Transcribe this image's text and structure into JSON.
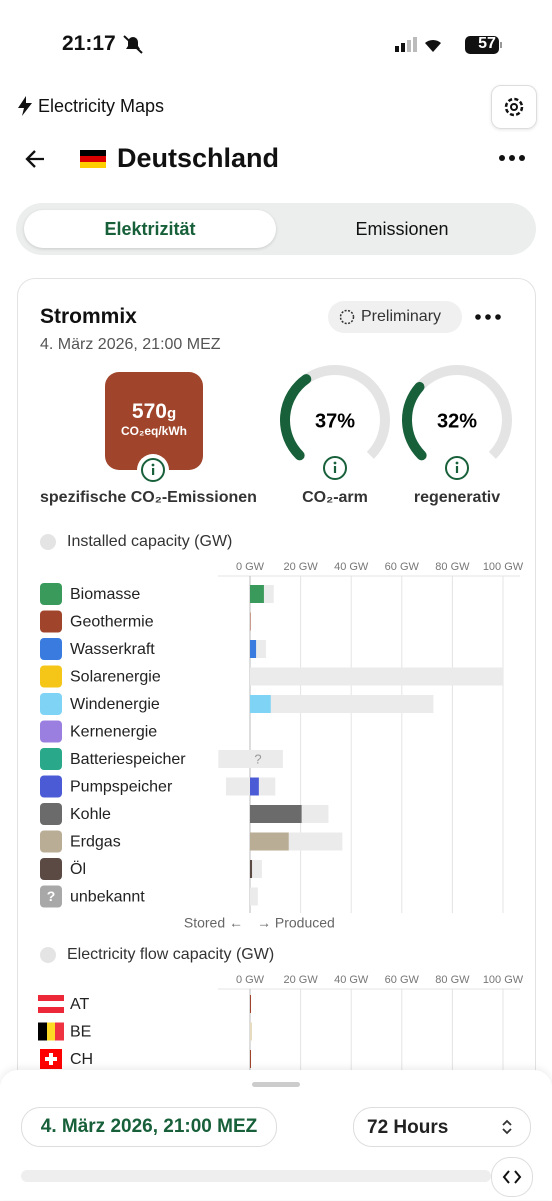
{
  "status_bar": {
    "time": "21:17",
    "battery": "57"
  },
  "header": {
    "app_name": "Electricity Maps",
    "zone": "Deutschland"
  },
  "tabs": {
    "active": "Elektrizität",
    "inactive": "Emissionen"
  },
  "card": {
    "title": "Strommix",
    "date": "4. März 2026, 21:00 MEZ",
    "badge": "Preliminary",
    "intensity": {
      "value": "570",
      "unit": "g",
      "unit_sub": "CO₂eq/kWh",
      "label": "spezifische CO₂-Emissionen"
    },
    "gauges": [
      {
        "label": "CO₂-arm",
        "value": 37,
        "value_label": "37%"
      },
      {
        "label": "regenerativ",
        "value": 32,
        "value_label": "32%"
      }
    ]
  },
  "capacity_chart": {
    "title": "Installed capacity (GW)",
    "xlim": [
      0,
      100
    ],
    "xticks": [
      {
        "value": 0,
        "label": "0 GW"
      },
      {
        "value": 20,
        "label": "20 GW"
      },
      {
        "value": 40,
        "label": "40 GW"
      },
      {
        "value": 60,
        "label": "60 GW"
      },
      {
        "value": 80,
        "label": "80 GW"
      },
      {
        "value": 100,
        "label": "100 GW"
      }
    ],
    "unknown_marker": "?",
    "sources": [
      {
        "name": "Biomasse",
        "color": "#3a9a5b",
        "produced": 5.5,
        "capacity": 9.4
      },
      {
        "name": "Geothermie",
        "color": "#a0452b",
        "produced": 0.2,
        "capacity": 0.3
      },
      {
        "name": "Wasserkraft",
        "color": "#3a7be0",
        "produced": 2.4,
        "capacity": 6.3
      },
      {
        "name": "Solarenergie",
        "color": "#f5c518",
        "produced": 0,
        "capacity": 100
      },
      {
        "name": "Windenergie",
        "color": "#7fd3f5",
        "produced": 8.2,
        "capacity": 72.5
      },
      {
        "name": "Kernenergie",
        "color": "#9b7fe0",
        "produced": 0,
        "capacity": 0
      },
      {
        "name": "Batteriespeicher",
        "color": "#2aa88a",
        "produced": null,
        "capacity": 13,
        "stored_capacity": -12.5
      },
      {
        "name": "Pumpspeicher",
        "color": "#4b5bd6",
        "produced": 3.5,
        "capacity": 10,
        "stored_capacity": -9.5
      },
      {
        "name": "Kohle",
        "color": "#6b6b6b",
        "produced": 20.4,
        "capacity": 31
      },
      {
        "name": "Erdgas",
        "color": "#b9ad95",
        "produced": 15.3,
        "capacity": 36.5
      },
      {
        "name": "Öl",
        "color": "#5a4a43",
        "produced": 0.8,
        "capacity": 4.7
      },
      {
        "name": "unbekannt",
        "color": "#a8a8a8",
        "produced": 0,
        "capacity": 3.1
      }
    ],
    "stored_label": "Stored ←",
    "produced_label": "→ Produced"
  },
  "flow_chart": {
    "title": "Electricity flow capacity (GW)",
    "xlim": [
      0,
      100
    ],
    "xticks": [
      {
        "value": 0,
        "label": "0 GW"
      },
      {
        "value": 20,
        "label": "20 GW"
      },
      {
        "value": 40,
        "label": "40 GW"
      },
      {
        "value": 60,
        "label": "60 GW"
      },
      {
        "value": 80,
        "label": "80 GW"
      },
      {
        "value": 100,
        "label": "100 GW"
      }
    ],
    "countries": [
      {
        "name": "AT",
        "color": "#a0452b",
        "value": 0.4
      },
      {
        "name": "BE",
        "color": "#e8dcc0",
        "value": 0.8
      },
      {
        "name": "CH",
        "color": "#a0452b",
        "value": 0.4
      }
    ]
  },
  "bottom_sheet": {
    "date": "4. März 2026, 21:00 MEZ",
    "range": "72 Hours"
  }
}
